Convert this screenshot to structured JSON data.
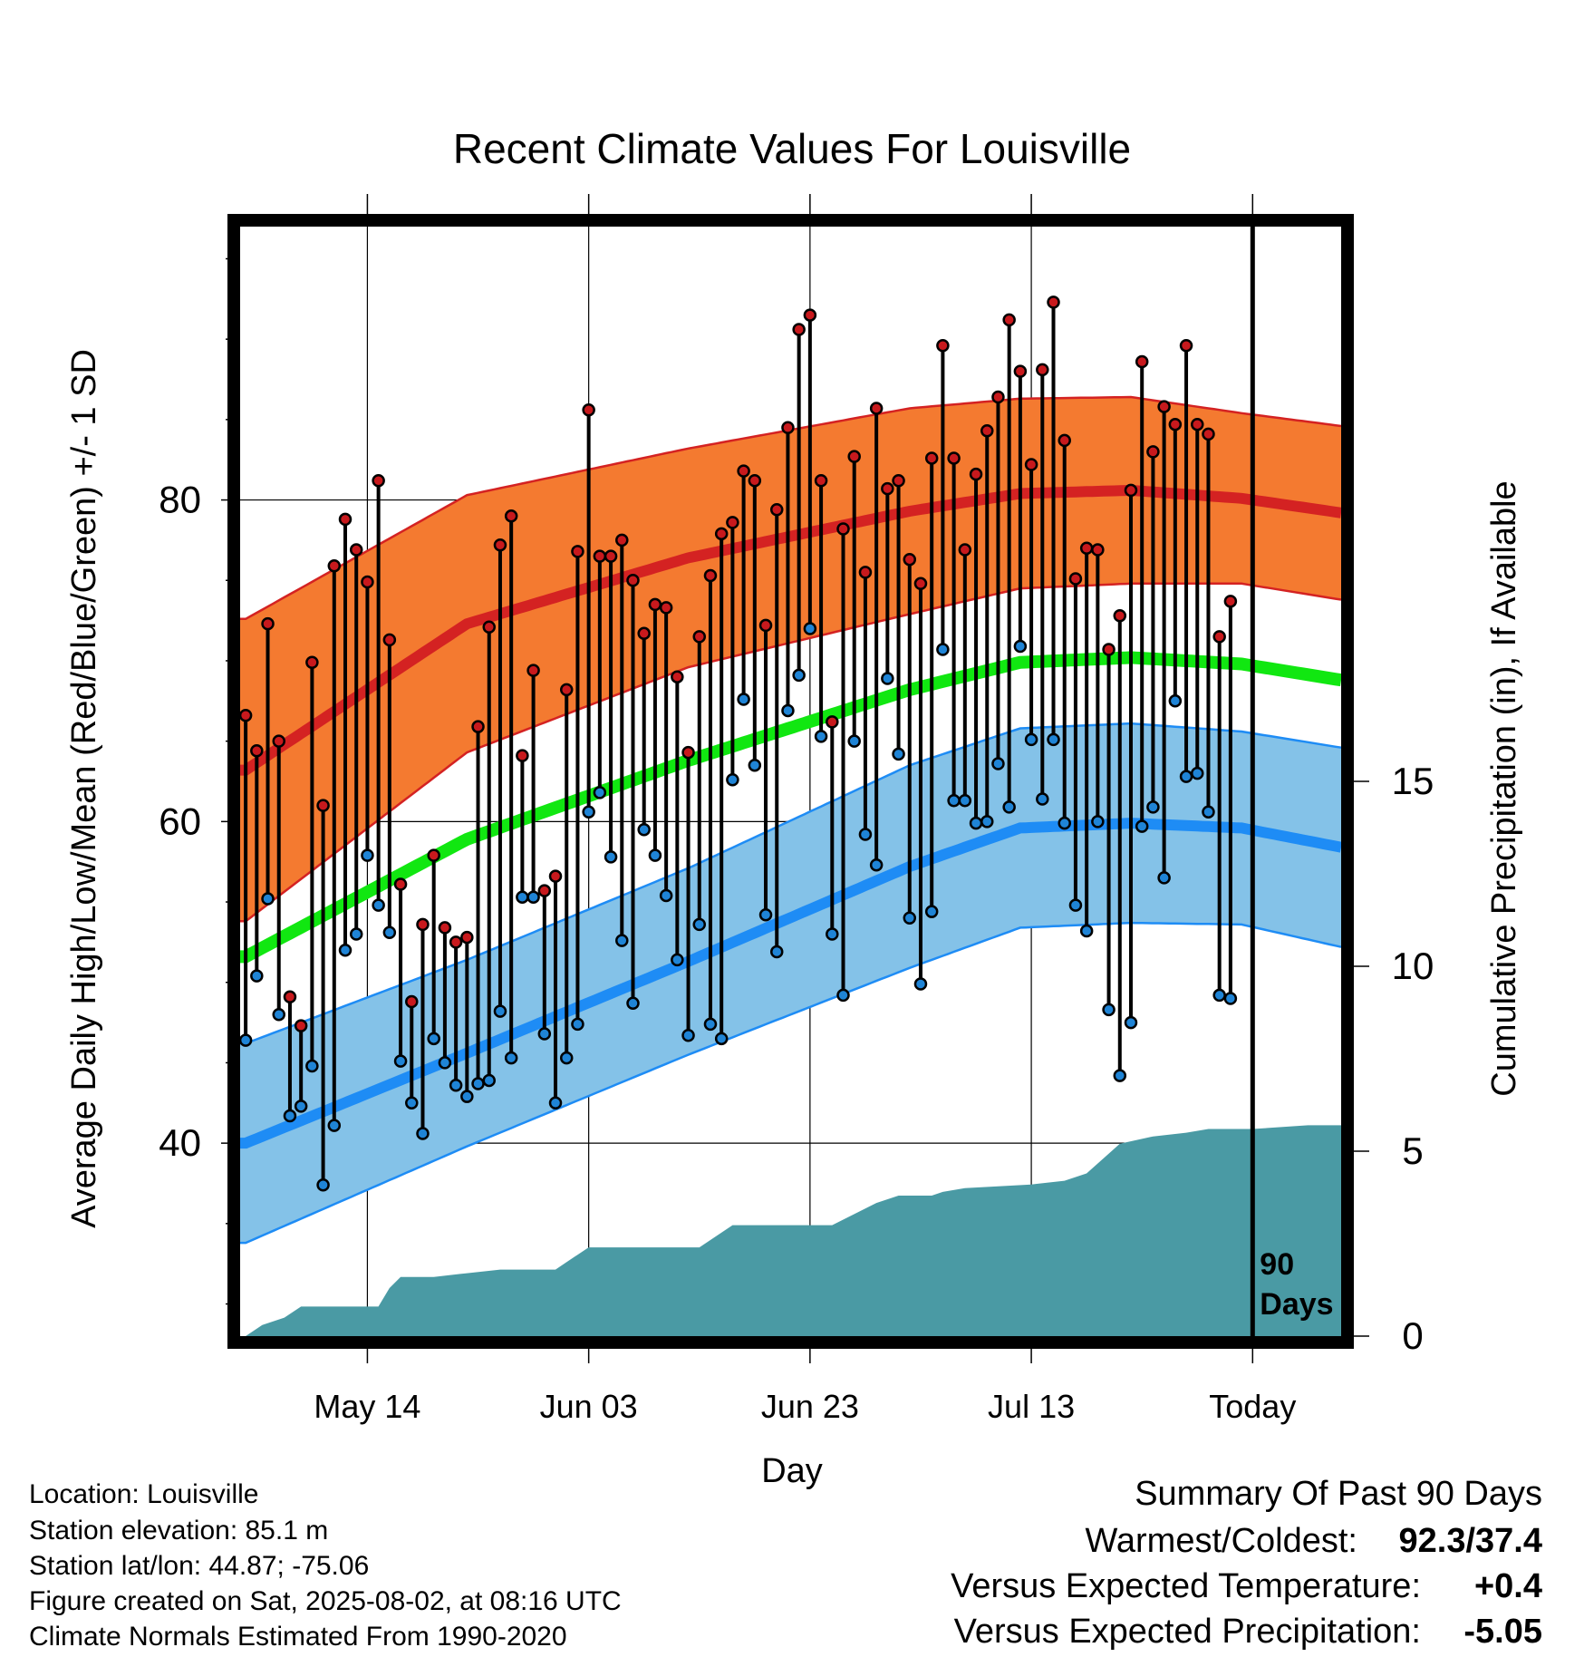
{
  "chart_data": {
    "type": "line",
    "title": "Recent Climate Values For Louisville",
    "xlabel": "Day",
    "ylabel": "Average Daily High/Low/Mean (Red/Blue/Green) +/- 1 SD",
    "y2label": "Cumulative Precipitation (in), If Available",
    "x_tick_labels": [
      "May 14",
      "Jun 03",
      "Jun 23",
      "Jul 13",
      "Today"
    ],
    "x_tick_days": [
      11,
      31,
      51,
      71,
      91
    ],
    "ylim": [
      28,
      97
    ],
    "y_ticks": [
      40,
      60,
      80
    ],
    "y2lim": [
      0,
      30
    ],
    "y2_ticks": [
      0,
      5,
      10,
      15
    ],
    "xlim": [
      -0.5,
      99
    ],
    "today_day": 91,
    "today_marker_label": [
      "90",
      "Days"
    ],
    "grid": true,
    "colors": {
      "high": "#d42222",
      "high_band": "#f47a30",
      "mean": "#11e711",
      "low": "#1e8cf5",
      "low_band": "#84c2e8",
      "precip": "#4a9aa4",
      "high_dot": "#c8191d",
      "low_dot": "#1f84d6"
    },
    "normal_high": [
      [
        0,
        63.2
      ],
      [
        20,
        72.3
      ],
      [
        40,
        76.4
      ],
      [
        60,
        79.3
      ],
      [
        70,
        80.4
      ],
      [
        80,
        80.6
      ],
      [
        90,
        80.1
      ],
      [
        99,
        79.2
      ]
    ],
    "normal_high_sd": [
      [
        0,
        9.4
      ],
      [
        20,
        8.0
      ],
      [
        40,
        6.8
      ],
      [
        60,
        6.4
      ],
      [
        70,
        5.9
      ],
      [
        80,
        5.8
      ],
      [
        90,
        5.3
      ],
      [
        99,
        5.4
      ]
    ],
    "normal_low": [
      [
        0,
        40.0
      ],
      [
        20,
        45.6
      ],
      [
        40,
        51.3
      ],
      [
        60,
        57.2
      ],
      [
        70,
        59.6
      ],
      [
        80,
        59.9
      ],
      [
        90,
        59.6
      ],
      [
        99,
        58.4
      ]
    ],
    "normal_low_sd": [
      [
        0,
        6.2
      ],
      [
        20,
        5.8
      ],
      [
        40,
        5.8
      ],
      [
        60,
        6.3
      ],
      [
        70,
        6.2
      ],
      [
        80,
        6.2
      ],
      [
        90,
        6.0
      ],
      [
        99,
        6.2
      ]
    ],
    "normal_mean": [
      [
        0,
        51.6
      ],
      [
        20,
        58.9
      ],
      [
        40,
        63.8
      ],
      [
        60,
        68.2
      ],
      [
        70,
        69.9
      ],
      [
        80,
        70.2
      ],
      [
        90,
        69.8
      ],
      [
        99,
        68.8
      ]
    ],
    "daily_high": [
      66.6,
      64.4,
      72.3,
      65.0,
      49.1,
      47.3,
      69.9,
      61.0,
      75.9,
      78.8,
      76.9,
      74.9,
      81.2,
      71.3,
      56.1,
      48.8,
      53.6,
      57.9,
      53.4,
      52.5,
      52.8,
      65.9,
      72.1,
      77.2,
      79.0,
      64.1,
      69.4,
      55.7,
      56.6,
      68.2,
      76.8,
      85.6,
      76.5,
      76.5,
      77.5,
      75.0,
      71.7,
      73.5,
      73.3,
      69.0,
      64.3,
      71.5,
      75.3,
      77.9,
      78.6,
      81.8,
      81.2,
      72.2,
      79.4,
      84.5,
      90.6,
      91.5,
      81.2,
      66.2,
      78.2,
      82.7,
      75.5,
      85.7,
      80.7,
      81.2,
      76.3,
      74.8,
      82.6,
      89.6,
      82.6,
      76.9,
      81.6,
      84.3,
      86.4,
      91.2,
      88.0,
      82.2,
      88.1,
      92.3,
      83.7,
      75.1,
      77.0,
      76.9,
      70.7,
      72.8,
      80.6,
      88.6,
      83.0,
      85.8,
      84.7,
      89.6,
      84.7,
      84.1,
      71.5,
      73.7
    ],
    "daily_low": [
      46.4,
      50.4,
      55.2,
      48.0,
      41.7,
      42.3,
      44.8,
      37.4,
      41.1,
      52.0,
      53.0,
      57.9,
      54.8,
      53.1,
      45.1,
      42.5,
      40.6,
      46.5,
      45.0,
      43.6,
      42.9,
      43.7,
      43.9,
      48.2,
      45.3,
      55.3,
      55.3,
      46.8,
      42.5,
      45.3,
      47.4,
      60.6,
      61.8,
      57.8,
      52.6,
      48.7,
      59.5,
      57.9,
      55.4,
      51.4,
      46.7,
      53.6,
      47.4,
      46.5,
      62.6,
      67.6,
      63.5,
      54.2,
      51.9,
      66.9,
      69.1,
      72.0,
      65.3,
      53.0,
      49.2,
      65.0,
      59.2,
      57.3,
      68.9,
      64.2,
      54.0,
      49.9,
      54.4,
      70.7,
      61.3,
      61.3,
      59.9,
      60.0,
      63.6,
      60.9,
      70.9,
      65.1,
      61.4,
      65.1,
      59.9,
      54.8,
      53.2,
      60.0,
      48.3,
      44.2,
      47.5,
      59.7,
      60.9,
      56.5,
      67.5,
      62.8,
      63.0,
      60.6,
      49.2,
      49.0
    ],
    "precip_steps": [
      [
        0,
        0.0
      ],
      [
        1.5,
        0.3
      ],
      [
        3.5,
        0.5
      ],
      [
        5,
        0.8
      ],
      [
        12,
        0.8
      ],
      [
        13,
        1.3
      ],
      [
        14,
        1.6
      ],
      [
        17,
        1.6
      ],
      [
        20,
        1.7
      ],
      [
        23,
        1.8
      ],
      [
        28,
        1.8
      ],
      [
        29,
        2.0
      ],
      [
        31,
        2.4
      ],
      [
        41,
        2.4
      ],
      [
        44,
        3.0
      ],
      [
        53,
        3.0
      ],
      [
        55,
        3.3
      ],
      [
        57,
        3.6
      ],
      [
        59,
        3.8
      ],
      [
        62,
        3.8
      ],
      [
        63,
        3.9
      ],
      [
        65,
        4.0
      ],
      [
        71,
        4.1
      ],
      [
        74,
        4.2
      ],
      [
        76,
        4.4
      ],
      [
        79,
        5.2
      ],
      [
        82,
        5.4
      ],
      [
        85,
        5.5
      ],
      [
        87,
        5.6
      ],
      [
        91,
        5.6
      ],
      [
        96,
        5.7
      ],
      [
        99,
        5.7
      ]
    ]
  },
  "info": {
    "location": "Location: Louisville",
    "elevation": "Station elevation: 85.1 m",
    "latlon": "Station lat/lon: 44.87; -75.06",
    "created": "Figure created on Sat, 2025-08-02, at 08:16 UTC",
    "normals": "Climate Normals Estimated From 1990-2020"
  },
  "summary": {
    "title": "Summary Of Past 90 Days",
    "warmest_label": "Warmest/Coldest:",
    "warmest_value": "92.3/37.4",
    "temp_label": "Versus Expected Temperature:",
    "temp_value": "+0.4",
    "temp_color": "#d62a2a",
    "precip_label": "Versus Expected Precipitation:",
    "precip_value": "-5.05",
    "precip_color": "#a65a22"
  }
}
